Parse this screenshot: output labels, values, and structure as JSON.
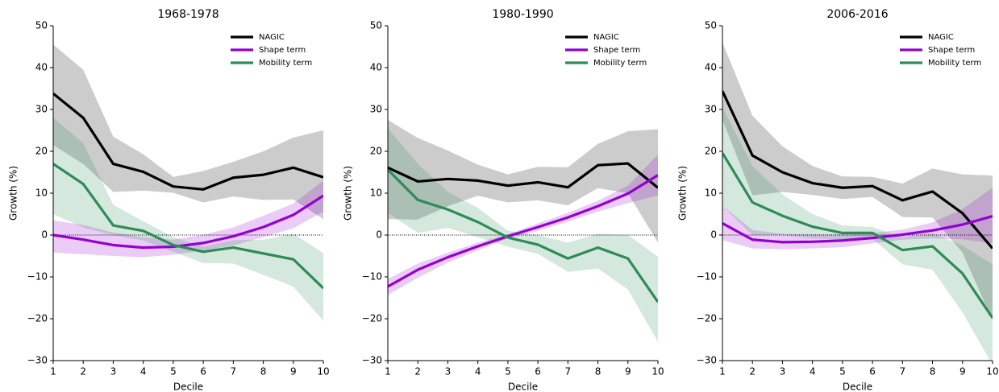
{
  "chart_data": [
    {
      "type": "line",
      "title": "1968-1978",
      "x_label": "Decile",
      "y_label": "Growth (%)",
      "x": [
        1,
        2,
        3,
        4,
        5,
        6,
        7,
        8,
        9,
        10
      ],
      "xlim": [
        1,
        10
      ],
      "xticks": [
        1,
        2,
        3,
        4,
        5,
        6,
        7,
        8,
        9,
        10
      ],
      "ylim": [
        -30,
        50
      ],
      "yticks": [
        {
          "value": -30,
          "label": "−30"
        },
        {
          "value": -20,
          "label": "−20"
        },
        {
          "value": -10,
          "label": "−10"
        },
        0,
        10,
        20,
        30,
        40,
        50
      ],
      "reference_line": 0,
      "legend": "upper right",
      "series": [
        {
          "name": "NAGIC",
          "color": "#000000",
          "values": [
            33.8,
            28,
            17,
            15.1,
            11.6,
            10.9,
            13.7,
            14.4,
            16.1,
            13.8
          ],
          "upper": [
            45.5,
            39.5,
            23.5,
            19.3,
            13.9,
            15.3,
            17.5,
            20,
            23.3,
            25
          ],
          "lower": [
            21.5,
            17,
            10.3,
            10.6,
            10.1,
            7.8,
            9.2,
            8.4,
            8.5,
            3.8
          ]
        },
        {
          "name": "Shape term",
          "color": "#9400d3",
          "values": [
            0,
            -1.1,
            -2.4,
            -3,
            -2.8,
            -1.9,
            -0.3,
            1.9,
            4.8,
            9.4
          ],
          "upper": [
            3.5,
            2.4,
            0.6,
            -0.5,
            -1.1,
            0.1,
            1.8,
            4.6,
            7.5,
            13
          ],
          "lower": [
            -4.2,
            -4.6,
            -5,
            -5.3,
            -4.7,
            -3.7,
            -2.5,
            -0.5,
            1.6,
            5.6
          ]
        },
        {
          "name": "Mobility term",
          "color": "#2e8b57",
          "values": [
            17,
            12.2,
            2.3,
            1,
            -2.4,
            -4,
            -3,
            -4.4,
            -5.8,
            -12.7
          ],
          "upper": [
            28,
            22,
            7.2,
            3.3,
            -0.5,
            -2.8,
            -1.2,
            -1.1,
            0.3,
            -4.3
          ],
          "lower": [
            5,
            1.8,
            0,
            -1.3,
            -4,
            -6.7,
            -6.8,
            -9.5,
            -12.3,
            -20.5
          ]
        }
      ]
    },
    {
      "type": "line",
      "title": "1980-1990",
      "x_label": "Decile",
      "y_label": "Growth (%)",
      "x": [
        1,
        2,
        3,
        4,
        5,
        6,
        7,
        8,
        9,
        10
      ],
      "xlim": [
        1,
        10
      ],
      "xticks": [
        1,
        2,
        3,
        4,
        5,
        6,
        7,
        8,
        9,
        10
      ],
      "ylim": [
        -30,
        50
      ],
      "yticks": [
        {
          "value": -30,
          "label": "−30"
        },
        {
          "value": -20,
          "label": "−20"
        },
        {
          "value": -10,
          "label": "−10"
        },
        0,
        10,
        20,
        30,
        40,
        50
      ],
      "reference_line": 0,
      "legend": "upper right",
      "series": [
        {
          "name": "NAGIC",
          "color": "#000000",
          "values": [
            16.1,
            12.8,
            13.4,
            13,
            11.8,
            12.6,
            11.4,
            16.7,
            17.1,
            11.3
          ],
          "upper": [
            27.5,
            23.2,
            20.2,
            16.8,
            14.5,
            16.3,
            16.2,
            21.8,
            24.8,
            25.3
          ],
          "lower": [
            3.8,
            3.7,
            6.9,
            9.4,
            7.8,
            8.3,
            7.1,
            11.2,
            10,
            -1.8
          ]
        },
        {
          "name": "Shape term",
          "color": "#9400d3",
          "values": [
            -12.3,
            -8.3,
            -5.3,
            -2.7,
            -0.3,
            1.9,
            4.2,
            6.9,
            9.9,
            14.3
          ],
          "upper": [
            -10.5,
            -6.8,
            -4.2,
            -1.8,
            0.2,
            2.8,
            5.3,
            8.2,
            11.8,
            19.2
          ],
          "lower": [
            -14.3,
            -10.2,
            -6.6,
            -3.6,
            -0.8,
            1,
            3.2,
            5.6,
            7.6,
            9.5
          ]
        },
        {
          "name": "Mobility term",
          "color": "#2e8b57",
          "values": [
            15.6,
            8.4,
            6.1,
            3.1,
            -0.6,
            -2.3,
            -5.6,
            -3,
            -5.6,
            -16
          ],
          "upper": [
            25.5,
            17,
            10.3,
            6.5,
            1,
            0,
            -1.8,
            0.3,
            0,
            -5.2
          ],
          "lower": [
            5.3,
            0.5,
            1.7,
            -0.5,
            -2.8,
            -4.5,
            -8.8,
            -8,
            -13,
            -25.5
          ]
        }
      ]
    },
    {
      "type": "line",
      "title": "2006-2016",
      "x_label": "Decile",
      "y_label": "Growth (%)",
      "x": [
        1,
        2,
        3,
        4,
        5,
        6,
        7,
        8,
        9,
        10
      ],
      "xlim": [
        1,
        10
      ],
      "xticks": [
        1,
        2,
        3,
        4,
        5,
        6,
        7,
        8,
        9,
        10
      ],
      "ylim": [
        -30,
        50
      ],
      "yticks": [
        {
          "value": -30,
          "label": "−30"
        },
        {
          "value": -20,
          "label": "−20"
        },
        {
          "value": -10,
          "label": "−10"
        },
        0,
        10,
        20,
        30,
        40,
        50
      ],
      "reference_line": 0,
      "legend": "upper right",
      "series": [
        {
          "name": "NAGIC",
          "color": "#000000",
          "values": [
            34.4,
            19,
            15,
            12.4,
            11.3,
            11.7,
            8.3,
            10.4,
            5.2,
            -3.2
          ],
          "upper": [
            46,
            28.5,
            21.2,
            16.5,
            14,
            13.9,
            12.3,
            15.9,
            14.5,
            14.2
          ],
          "lower": [
            27.5,
            9.5,
            10.3,
            9.6,
            8.6,
            9.1,
            4.3,
            4.2,
            -4.2,
            -20.5
          ]
        },
        {
          "name": "Shape term",
          "color": "#9400d3",
          "values": [
            2.8,
            -1.1,
            -1.7,
            -1.6,
            -1.3,
            -0.7,
            0.1,
            1.1,
            2.5,
            4.5
          ],
          "upper": [
            7,
            1.2,
            0.3,
            0.2,
            0.2,
            0.5,
            1.3,
            3,
            6.2,
            11.3
          ],
          "lower": [
            -1.2,
            -3.2,
            -3.4,
            -3.2,
            -2.9,
            -2,
            -1.1,
            -0.8,
            -1,
            -2
          ]
        },
        {
          "name": "Mobility term",
          "color": "#2e8b57",
          "values": [
            19.6,
            7.8,
            4.6,
            2,
            0.5,
            0.5,
            -3.6,
            -2.7,
            -9.2,
            -19.8
          ],
          "upper": [
            30.5,
            16.5,
            9.7,
            5,
            2.3,
            1.9,
            -0.5,
            0.5,
            -2.5,
            -7
          ],
          "lower": [
            7,
            0,
            0,
            -0.8,
            -1,
            -0.9,
            -7,
            -8.3,
            -18.5,
            -31
          ]
        }
      ]
    }
  ]
}
